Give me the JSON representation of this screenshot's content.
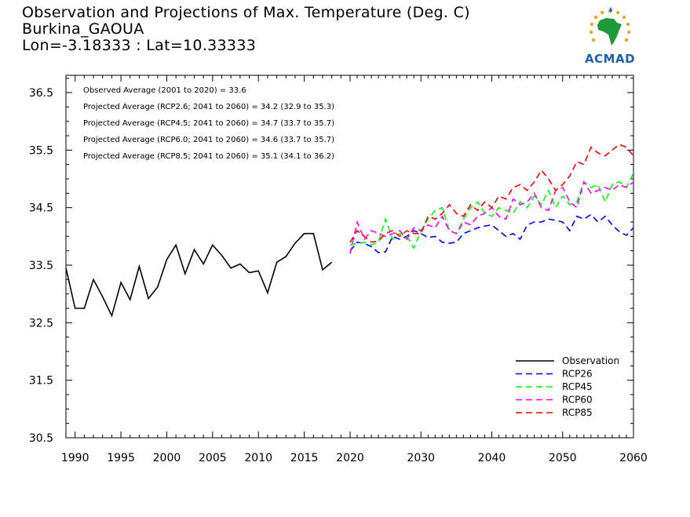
{
  "header": {
    "title_line1": "Observation and Projections of Max. Temperature (Deg. C)",
    "title_line2": "Burkina_GAOUA",
    "title_line3": "Lon=-3.18333 : Lat=10.33333"
  },
  "logo": {
    "text": "ACMAD",
    "icon": "africa-map-icon"
  },
  "annotations": [
    "Observed Average (2001 to 2020) = 33.6",
    "Projected Average (RCP2.6; 2041 to 2060) = 34.2 (32.9 to 35.3)",
    "Projected Average (RCP4.5; 2041 to 2060) = 34.7 (33.7 to 35.7)",
    "Projected Average (RCP6.0; 2041 to 2060) = 34.6 (33.7 to 35.7)",
    "Projected Average (RCP8.5; 2041 to 2060) = 35.1 (34.1 to 36.2)"
  ],
  "chart_data": {
    "type": "line",
    "title": "Observation and Projections of Max. Temperature (Deg. C)",
    "xlabel": "",
    "ylabel": "",
    "xlim": [
      1989,
      2060
    ],
    "ylim": [
      30.5,
      36.8
    ],
    "x_ticks_left": [
      1990,
      1995,
      2000,
      2005,
      2010,
      2015,
      2020
    ],
    "x_ticks_right": [
      2030,
      2040,
      2050,
      2060
    ],
    "y_ticks": [
      30.5,
      31.5,
      32.5,
      33.5,
      34.5,
      35.5,
      36.5
    ],
    "legend_position": "bottom-right",
    "grid": false,
    "series": [
      {
        "name": "Observation",
        "color": "#000000",
        "dashed": false,
        "x": [
          1989,
          1990,
          1991,
          1992,
          1993,
          1994,
          1995,
          1996,
          1997,
          1998,
          1999,
          2000,
          2001,
          2002,
          2003,
          2004,
          2005,
          2006,
          2007,
          2008,
          2009,
          2010,
          2011,
          2012,
          2013,
          2014,
          2015,
          2016,
          2017,
          2018,
          2019
        ],
        "y": [
          33.45,
          32.75,
          32.75,
          33.25,
          32.95,
          32.62,
          33.2,
          32.9,
          33.48,
          32.92,
          33.12,
          33.6,
          33.85,
          33.35,
          33.77,
          33.52,
          33.85,
          33.67,
          33.45,
          33.52,
          33.37,
          33.4,
          33.02,
          33.55,
          33.65,
          33.88,
          34.05,
          34.05,
          33.42,
          33.55,
          null
        ]
      },
      {
        "name": "RCP26",
        "color": "#0000ff",
        "dashed": true,
        "x": [
          2020,
          2021,
          2022,
          2023,
          2024,
          2025,
          2026,
          2027,
          2028,
          2029,
          2030,
          2031,
          2032,
          2033,
          2034,
          2035,
          2036,
          2037,
          2038,
          2039,
          2040,
          2041,
          2042,
          2043,
          2044,
          2045,
          2046,
          2047,
          2048,
          2049,
          2050,
          2051,
          2052,
          2053,
          2054,
          2055,
          2056,
          2057,
          2058,
          2059,
          2060
        ],
        "y": [
          33.75,
          33.9,
          33.88,
          33.82,
          33.72,
          33.73,
          34.0,
          33.95,
          34.0,
          34.1,
          34.05,
          33.98,
          34.0,
          33.9,
          33.88,
          33.9,
          34.05,
          34.1,
          34.15,
          34.18,
          34.2,
          34.1,
          34.0,
          34.05,
          33.95,
          34.2,
          34.25,
          34.25,
          34.3,
          34.28,
          34.25,
          34.1,
          34.35,
          34.3,
          34.38,
          34.25,
          34.35,
          34.2,
          34.08,
          34.02,
          34.15
        ]
      },
      {
        "name": "RCP45",
        "color": "#00ff00",
        "dashed": true,
        "x": [
          2020,
          2021,
          2022,
          2023,
          2024,
          2025,
          2026,
          2027,
          2028,
          2029,
          2030,
          2031,
          2032,
          2033,
          2034,
          2035,
          2036,
          2037,
          2038,
          2039,
          2040,
          2041,
          2042,
          2043,
          2044,
          2045,
          2046,
          2047,
          2048,
          2049,
          2050,
          2051,
          2052,
          2053,
          2054,
          2055,
          2056,
          2057,
          2058,
          2059,
          2060
        ],
        "y": [
          33.85,
          33.88,
          33.9,
          33.85,
          33.9,
          34.3,
          33.95,
          34.05,
          34.0,
          33.8,
          34.1,
          34.3,
          34.45,
          34.5,
          34.1,
          34.05,
          34.3,
          34.5,
          34.6,
          34.4,
          34.35,
          34.5,
          34.45,
          34.4,
          34.6,
          34.5,
          34.7,
          34.55,
          34.8,
          34.5,
          34.7,
          34.55,
          34.6,
          34.95,
          34.85,
          34.9,
          34.6,
          34.9,
          34.95,
          34.85,
          35.1
        ]
      },
      {
        "name": "RCP60",
        "color": "#ff00ff",
        "dashed": true,
        "x": [
          2020,
          2021,
          2022,
          2023,
          2024,
          2025,
          2026,
          2027,
          2028,
          2029,
          2030,
          2031,
          2032,
          2033,
          2034,
          2035,
          2036,
          2037,
          2038,
          2039,
          2040,
          2041,
          2042,
          2043,
          2044,
          2045,
          2046,
          2047,
          2048,
          2049,
          2050,
          2051,
          2052,
          2053,
          2054,
          2055,
          2056,
          2057,
          2058,
          2059,
          2060
        ],
        "y": [
          33.7,
          34.25,
          33.95,
          34.1,
          34.05,
          34.0,
          34.05,
          34.1,
          33.95,
          34.15,
          34.1,
          34.2,
          34.15,
          34.35,
          34.1,
          34.05,
          34.25,
          34.2,
          34.35,
          34.4,
          34.5,
          34.35,
          34.3,
          34.65,
          34.55,
          34.6,
          34.75,
          34.5,
          34.45,
          34.8,
          34.85,
          34.6,
          34.5,
          34.95,
          34.75,
          34.8,
          34.85,
          34.8,
          34.9,
          34.85,
          34.95
        ]
      },
      {
        "name": "RCP85",
        "color": "#ff0000",
        "dashed": true,
        "x": [
          2020,
          2021,
          2022,
          2023,
          2024,
          2025,
          2026,
          2027,
          2028,
          2029,
          2030,
          2031,
          2032,
          2033,
          2034,
          2035,
          2036,
          2037,
          2038,
          2039,
          2040,
          2041,
          2042,
          2043,
          2044,
          2045,
          2046,
          2047,
          2048,
          2049,
          2050,
          2051,
          2052,
          2053,
          2054,
          2055,
          2056,
          2057,
          2058,
          2059,
          2060
        ],
        "y": [
          33.9,
          34.1,
          34.0,
          33.9,
          33.92,
          34.05,
          34.1,
          34.0,
          34.1,
          34.05,
          34.05,
          34.35,
          34.3,
          34.4,
          34.55,
          34.4,
          34.35,
          34.55,
          34.45,
          34.6,
          34.5,
          34.7,
          34.65,
          34.85,
          34.9,
          34.8,
          34.95,
          35.15,
          35.0,
          34.8,
          34.9,
          35.05,
          35.3,
          35.25,
          35.55,
          35.45,
          35.4,
          35.5,
          35.6,
          35.55,
          35.4
        ]
      }
    ]
  }
}
